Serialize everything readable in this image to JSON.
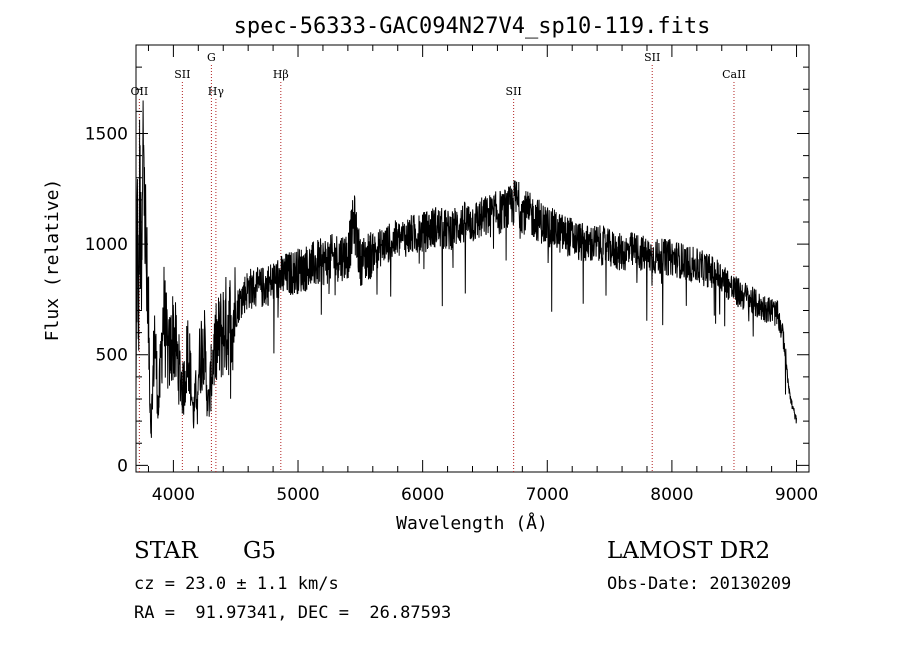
{
  "chart_data": {
    "type": "line",
    "title": "spec-56333-GAC094N27V4_sp10-119.fits",
    "xlabel": "Wavelength (Å)",
    "ylabel": "Flux (relative)",
    "xlim": [
      3700,
      9100
    ],
    "ylim": [
      -30,
      1900
    ],
    "x_ticks": [
      4000,
      5000,
      6000,
      7000,
      8000,
      9000
    ],
    "x_tick_labels": [
      "4000",
      "5000",
      "6000",
      "7000",
      "8000",
      "9000"
    ],
    "y_ticks": [
      0,
      500,
      1000,
      1500
    ],
    "y_tick_labels": [
      "0",
      "500",
      "1000",
      "1500"
    ],
    "grid": false,
    "line_color": "#000000",
    "marker_color": "#b22222",
    "series": [
      {
        "x": [
          3700,
          3710,
          3720,
          3730,
          3745,
          3760,
          3780,
          3800,
          3820,
          3850,
          3880,
          3920,
          3960,
          4000,
          4040,
          4080,
          4120,
          4160,
          4200,
          4240,
          4280,
          4320,
          4360,
          4400,
          4450,
          4500,
          4550,
          4600,
          4700,
          4800,
          4900,
          5000,
          5100,
          5200,
          5300,
          5400,
          5450,
          5500,
          5600,
          5700,
          5800,
          5900,
          6000,
          6100,
          6200,
          6300,
          6400,
          6500,
          6600,
          6700,
          6750,
          6800,
          6900,
          7000,
          7100,
          7200,
          7300,
          7400,
          7500,
          7600,
          7700,
          7800,
          7900,
          8000,
          8100,
          8200,
          8300,
          8400,
          8500,
          8600,
          8700,
          8800,
          8850,
          8900,
          8950,
          9000
        ],
        "y": [
          300,
          1150,
          600,
          1280,
          700,
          1600,
          900,
          650,
          150,
          600,
          250,
          700,
          480,
          600,
          450,
          330,
          550,
          220,
          420,
          600,
          260,
          500,
          560,
          620,
          640,
          700,
          760,
          800,
          800,
          830,
          860,
          880,
          900,
          920,
          940,
          950,
          1110,
          920,
          960,
          1000,
          1020,
          1040,
          1050,
          1080,
          1060,
          1090,
          1100,
          1120,
          1140,
          1160,
          1200,
          1150,
          1120,
          1080,
          1050,
          1030,
          1000,
          1000,
          980,
          960,
          970,
          950,
          940,
          940,
          920,
          900,
          880,
          850,
          790,
          760,
          720,
          700,
          680,
          560,
          300,
          200
        ]
      }
    ],
    "line_markers": [
      {
        "label": "OII",
        "x": 3727,
        "label_level": 3
      },
      {
        "label": "SII",
        "x": 4072,
        "label_level": 2
      },
      {
        "label": "G",
        "x": 4305,
        "label_level": 1
      },
      {
        "label": "Hγ",
        "x": 4341,
        "label_level": 3
      },
      {
        "label": "Hβ",
        "x": 4862,
        "label_level": 2
      },
      {
        "label": "SII",
        "x": 6730,
        "label_level": 3
      },
      {
        "label": "SII",
        "x": 7842,
        "label_level": 1
      },
      {
        "label": "CaII",
        "x": 8498,
        "label_level": 2
      }
    ]
  },
  "info": {
    "object_class": "STAR",
    "subclass": "G5",
    "redshift_line": "cz = 23.0 ± 1.1 km/s",
    "coords_line": "RA =  91.97341, DEC =  26.87593",
    "survey": "LAMOST DR2",
    "obs_date_line": "Obs-Date: 20130209"
  }
}
